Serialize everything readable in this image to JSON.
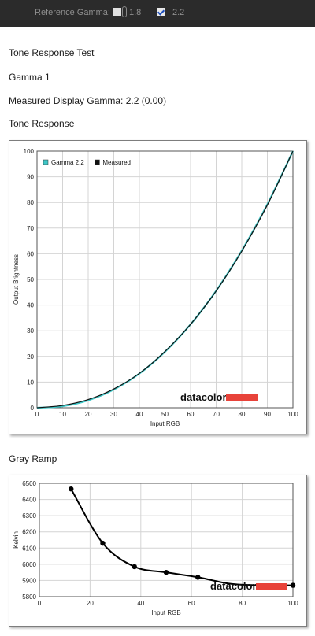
{
  "toolbar": {
    "reference_gamma_label": "Reference Gamma:",
    "option_18_label": "1.8",
    "option_18_checked": false,
    "option_22_label": "2.2",
    "option_22_checked": true
  },
  "headings": {
    "section_title": "Tone Response Test",
    "subtitle": "Gamma 1",
    "measured": "Measured Display Gamma: 2.2 (0.00)",
    "tone_response": "Tone Response",
    "gray_ramp": "Gray Ramp"
  },
  "brand": {
    "name": "datacolor",
    "accent_color": "#e8433a"
  },
  "chart_data": [
    {
      "type": "line",
      "title": "Tone Response",
      "xlabel": "Input RGB",
      "ylabel": "Output Brightness",
      "xlim": [
        0,
        100
      ],
      "ylim": [
        0,
        100
      ],
      "xticks": [
        0,
        10,
        20,
        30,
        40,
        50,
        60,
        70,
        80,
        90,
        100
      ],
      "yticks": [
        0,
        10,
        20,
        30,
        40,
        50,
        60,
        70,
        80,
        90,
        100
      ],
      "grid": true,
      "legend_position": "top-left",
      "series": [
        {
          "name": "Gamma 2.2",
          "color": "#3ec6c6",
          "x": [
            0,
            10,
            20,
            30,
            40,
            50,
            60,
            70,
            80,
            90,
            100
          ],
          "values": [
            0,
            0.6,
            2.9,
            7.1,
            13.3,
            21.8,
            32.5,
            45.6,
            61.2,
            79.3,
            100
          ]
        },
        {
          "name": "Measured",
          "color": "#111111",
          "x": [
            0,
            10,
            20,
            30,
            40,
            50,
            60,
            70,
            80,
            90,
            100
          ],
          "values": [
            0,
            0.9,
            3.2,
            7.3,
            13.4,
            21.9,
            32.5,
            45.5,
            61.0,
            79.0,
            100
          ]
        }
      ]
    },
    {
      "type": "line",
      "title": "Gray Ramp",
      "xlabel": "Input RGB",
      "ylabel": "Kelvin",
      "xlim": [
        0,
        100
      ],
      "ylim": [
        5800,
        6500
      ],
      "xticks": [
        0,
        20,
        40,
        60,
        80,
        100
      ],
      "yticks": [
        5800,
        5900,
        6000,
        6100,
        6200,
        6300,
        6400,
        6500
      ],
      "grid": true,
      "series": [
        {
          "color": "#000000",
          "x": [
            12.5,
            25,
            37.5,
            50,
            62.5,
            75,
            87.5,
            100
          ],
          "values": [
            6465,
            6130,
            5985,
            5950,
            5920,
            5880,
            5870,
            5870
          ]
        }
      ]
    }
  ]
}
